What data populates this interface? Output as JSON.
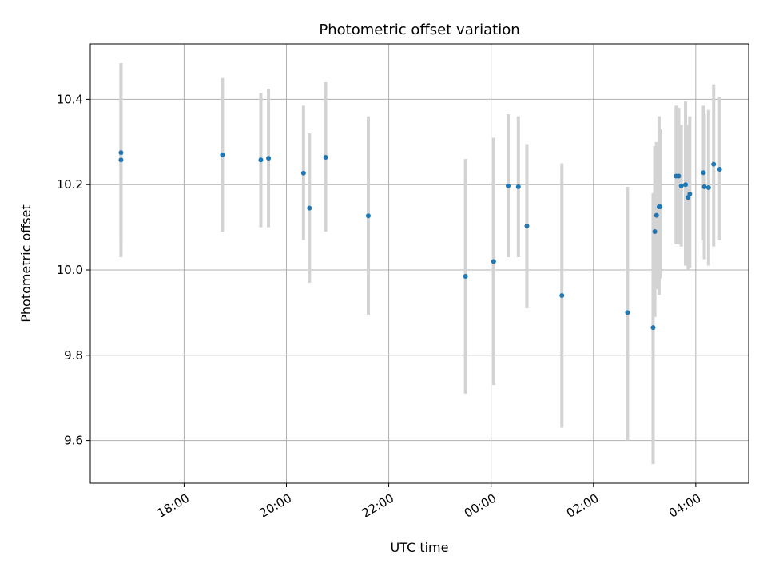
{
  "chart_data": {
    "type": "scatter",
    "title": "Photometric offset variation",
    "xlabel": "UTC time",
    "ylabel": "Photometric offset",
    "x_unit": "hours (clock time, continuing past midnight)",
    "xlim": [
      16.1667,
      5.0333
    ],
    "ylim": [
      9.5,
      10.53
    ],
    "x_ticks": [
      {
        "value": 18.0,
        "label": "18:00"
      },
      {
        "value": 20.0,
        "label": "20:00"
      },
      {
        "value": 22.0,
        "label": "22:00"
      },
      {
        "value": 24.0,
        "label": "00:00"
      },
      {
        "value": 26.0,
        "label": "02:00"
      },
      {
        "value": 28.0,
        "label": "04:00"
      }
    ],
    "y_ticks": [
      {
        "value": 9.6,
        "label": "9.6"
      },
      {
        "value": 9.8,
        "label": "9.8"
      },
      {
        "value": 10.0,
        "label": "10.0"
      },
      {
        "value": 10.2,
        "label": "10.2"
      },
      {
        "value": 10.4,
        "label": "10.4"
      }
    ],
    "grid": true,
    "x_tick_rotation_deg": 30,
    "colors": {
      "marker": "#1f77b4",
      "errorbar": "#d3d3d3",
      "grid": "#b0b0b0"
    },
    "series": [
      {
        "points": [
          {
            "x": "16:46",
            "y": 10.275,
            "ylo": 10.07,
            "yhi": 10.48
          },
          {
            "x": "16:46",
            "y": 10.258,
            "ylo": 10.03,
            "yhi": 10.485
          },
          {
            "x": "18:45",
            "y": 10.27,
            "ylo": 10.09,
            "yhi": 10.45
          },
          {
            "x": "19:30",
            "y": 10.258,
            "ylo": 10.1,
            "yhi": 10.415
          },
          {
            "x": "19:39",
            "y": 10.262,
            "ylo": 10.1,
            "yhi": 10.425
          },
          {
            "x": "20:20",
            "y": 10.227,
            "ylo": 10.07,
            "yhi": 10.385
          },
          {
            "x": "20:27",
            "y": 10.145,
            "ylo": 9.97,
            "yhi": 10.32
          },
          {
            "x": "20:46",
            "y": 10.264,
            "ylo": 10.09,
            "yhi": 10.44
          },
          {
            "x": "21:36",
            "y": 10.127,
            "ylo": 9.895,
            "yhi": 10.36
          },
          {
            "x": "23:30",
            "y": 9.985,
            "ylo": 9.71,
            "yhi": 10.26
          },
          {
            "x": "00:03",
            "y": 10.02,
            "ylo": 9.73,
            "yhi": 10.31
          },
          {
            "x": "00:20",
            "y": 10.197,
            "ylo": 10.03,
            "yhi": 10.365
          },
          {
            "x": "00:32",
            "y": 10.195,
            "ylo": 10.03,
            "yhi": 10.36
          },
          {
            "x": "00:42",
            "y": 10.103,
            "ylo": 9.91,
            "yhi": 10.295
          },
          {
            "x": "01:23",
            "y": 9.94,
            "ylo": 9.63,
            "yhi": 10.25
          },
          {
            "x": "02:40",
            "y": 9.9,
            "ylo": 9.6,
            "yhi": 10.195
          },
          {
            "x": "03:10",
            "y": 9.865,
            "ylo": 9.545,
            "yhi": 10.18
          },
          {
            "x": "03:12",
            "y": 10.09,
            "ylo": 9.89,
            "yhi": 10.29
          },
          {
            "x": "03:14",
            "y": 10.128,
            "ylo": 9.955,
            "yhi": 10.3
          },
          {
            "x": "03:17",
            "y": 10.148,
            "ylo": 9.94,
            "yhi": 10.36
          },
          {
            "x": "03:18",
            "y": 10.148,
            "ylo": 9.98,
            "yhi": 10.33
          },
          {
            "x": "03:37",
            "y": 10.22,
            "ylo": 10.06,
            "yhi": 10.385
          },
          {
            "x": "03:40",
            "y": 10.22,
            "ylo": 10.06,
            "yhi": 10.38
          },
          {
            "x": "03:43",
            "y": 10.197,
            "ylo": 10.055,
            "yhi": 10.34
          },
          {
            "x": "03:48",
            "y": 10.2,
            "ylo": 10.01,
            "yhi": 10.395
          },
          {
            "x": "03:51",
            "y": 10.17,
            "ylo": 10.0,
            "yhi": 10.34
          },
          {
            "x": "03:53",
            "y": 10.178,
            "ylo": 10.005,
            "yhi": 10.36
          },
          {
            "x": "04:09",
            "y": 10.228,
            "ylo": 10.07,
            "yhi": 10.385
          },
          {
            "x": "04:10",
            "y": 10.195,
            "ylo": 10.025,
            "yhi": 10.365
          },
          {
            "x": "04:15",
            "y": 10.193,
            "ylo": 10.01,
            "yhi": 10.375
          },
          {
            "x": "04:21",
            "y": 10.248,
            "ylo": 10.055,
            "yhi": 10.435
          },
          {
            "x": "04:28",
            "y": 10.236,
            "ylo": 10.07,
            "yhi": 10.405
          }
        ]
      }
    ]
  }
}
